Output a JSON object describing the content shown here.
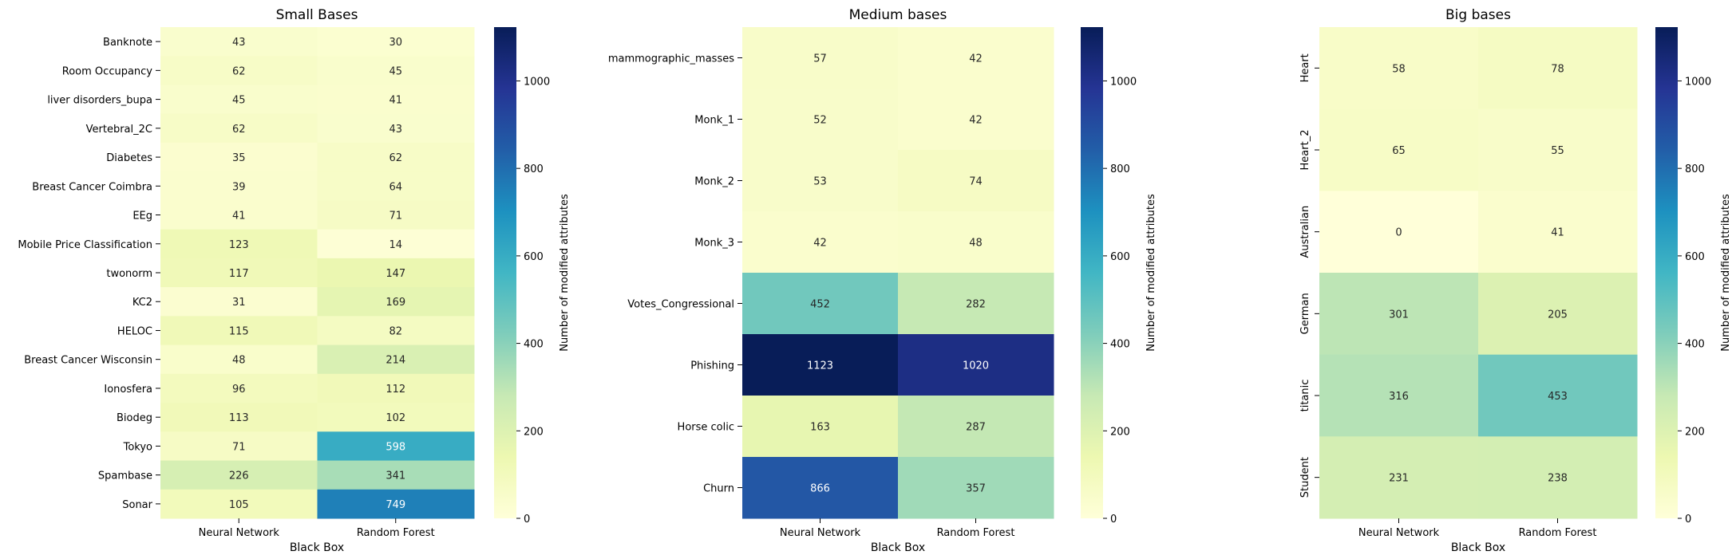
{
  "chart_data": [
    {
      "type": "heatmap",
      "title": "Small Bases",
      "xlabel": "Black Box",
      "ylabel": "",
      "columns": [
        "Neural Network",
        "Random Forest"
      ],
      "rows": [
        "Banknote",
        "Room Occupancy",
        "liver disorders_bupa",
        "Vertebral_2C",
        "Diabetes",
        "Breast Cancer Coimbra",
        "EEg",
        "Mobile Price Classification",
        "twonorm",
        "KC2",
        "HELOC",
        "Breast Cancer Wisconsin",
        "Ionosfera",
        "Biodeg",
        "Tokyo",
        "Spambase",
        "Sonar"
      ],
      "values": [
        [
          43,
          30
        ],
        [
          62,
          45
        ],
        [
          45,
          41
        ],
        [
          62,
          43
        ],
        [
          35,
          62
        ],
        [
          39,
          64
        ],
        [
          41,
          71
        ],
        [
          123,
          14
        ],
        [
          117,
          147
        ],
        [
          31,
          169
        ],
        [
          115,
          82
        ],
        [
          48,
          214
        ],
        [
          96,
          112
        ],
        [
          113,
          102
        ],
        [
          71,
          598
        ],
        [
          226,
          341
        ],
        [
          105,
          749
        ]
      ],
      "row_label_rotation": "horizontal",
      "colorbar": {
        "label": "Number of modified attributes",
        "ticks": [
          0,
          200,
          400,
          600,
          800,
          1000
        ],
        "range": [
          0,
          1123
        ],
        "colormap": "YlGnBu"
      }
    },
    {
      "type": "heatmap",
      "title": "Medium bases",
      "xlabel": "Black Box",
      "ylabel": "",
      "columns": [
        "Neural Network",
        "Random Forest"
      ],
      "rows": [
        "mammographic_masses",
        "Monk_1",
        "Monk_2",
        "Monk_3",
        "Votes_Congressional",
        "Phishing",
        "Horse colic",
        "Churn"
      ],
      "values": [
        [
          57,
          42
        ],
        [
          52,
          42
        ],
        [
          53,
          74
        ],
        [
          42,
          48
        ],
        [
          452,
          282
        ],
        [
          1123,
          1020
        ],
        [
          163,
          287
        ],
        [
          866,
          357
        ]
      ],
      "row_label_rotation": "horizontal",
      "colorbar": {
        "label": "Number of modified attributes",
        "ticks": [
          0,
          200,
          400,
          600,
          800,
          1000
        ],
        "range": [
          0,
          1123
        ],
        "colormap": "YlGnBu"
      }
    },
    {
      "type": "heatmap",
      "title": "Big bases",
      "xlabel": "Black Box",
      "ylabel": "",
      "columns": [
        "Neural Network",
        "Random Forest"
      ],
      "rows": [
        "Heart",
        "Heart_2",
        "Australian",
        "German",
        "titanic",
        "Student"
      ],
      "values": [
        [
          58,
          78
        ],
        [
          65,
          55
        ],
        [
          0,
          41
        ],
        [
          301,
          205
        ],
        [
          316,
          453
        ],
        [
          231,
          238
        ]
      ],
      "row_label_rotation": "vertical",
      "colorbar": {
        "label": "Number of modified attributes",
        "ticks": [
          0,
          200,
          400,
          600,
          800,
          1000
        ],
        "range": [
          0,
          1123
        ],
        "colormap": "YlGnBu"
      }
    }
  ],
  "colors": {
    "colormap_stops": [
      "#ffffd9",
      "#edf8b1",
      "#c7e9b4",
      "#7fcdbb",
      "#41b6c4",
      "#1d91c0",
      "#225ea8",
      "#253494",
      "#081d58"
    ]
  }
}
